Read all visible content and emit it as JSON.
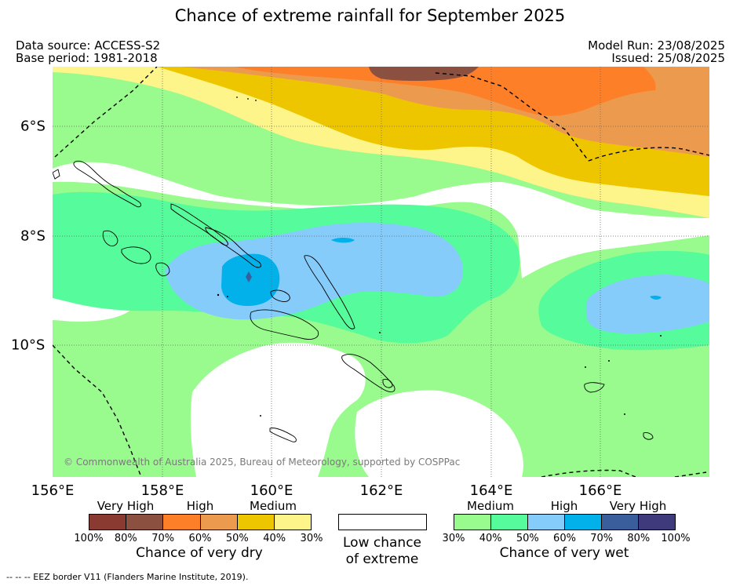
{
  "title": "Chance of extreme rainfall for September 2025",
  "meta": {
    "data_source": "Data source: ACCESS-S2",
    "base_period": "Base period: 1981-2018",
    "model_run": "Model Run: 23/08/2025",
    "issued": "Issued: 25/08/2025"
  },
  "map": {
    "lon_labels": [
      "156°E",
      "158°E",
      "160°E",
      "162°E",
      "164°E",
      "166°E"
    ],
    "lat_labels": [
      "6°S",
      "8°S",
      "10°S"
    ],
    "copyright": "© Commonwealth of Australia 2025, Bureau of Meteorology, supported by COSPPac"
  },
  "legend": {
    "dry": {
      "categories": [
        "Very High",
        "High",
        "Medium"
      ],
      "colors": [
        "#8b3a31",
        "#8b5040",
        "#fd7f28",
        "#ec9b4e",
        "#eec600",
        "#fdf58a"
      ],
      "ticks": [
        "100%",
        "80%",
        "70%",
        "60%",
        "50%",
        "40%",
        "30%"
      ],
      "title": "Chance of very dry"
    },
    "low": {
      "line1": "Low chance",
      "line2": "of extreme"
    },
    "wet": {
      "categories": [
        "Medium",
        "High",
        "Very High"
      ],
      "colors": [
        "#99fb8d",
        "#56fb9c",
        "#86ccfb",
        "#02b0ea",
        "#3a5d9c",
        "#3f3a7c"
      ],
      "ticks": [
        "30%",
        "40%",
        "50%",
        "60%",
        "70%",
        "80%",
        "100%"
      ],
      "title": "Chance of very wet"
    }
  },
  "footnote": "-- -- -- EEZ border V11 (Flanders Marine Institute, 2019)."
}
